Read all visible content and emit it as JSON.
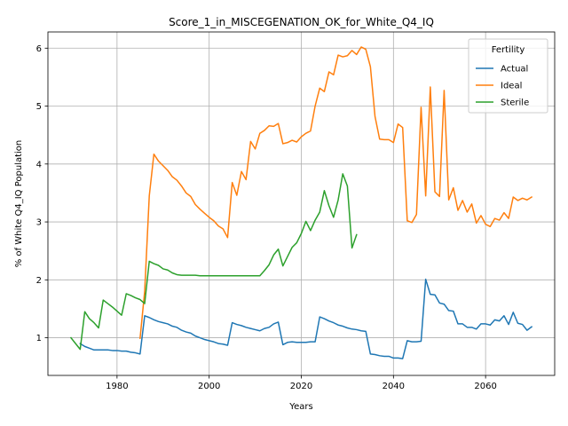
{
  "chart_data": {
    "type": "line",
    "title": "Score_1_in_MISCEGENATION_OK_for_White_Q4_IQ",
    "xlabel": "Years",
    "ylabel": "% of White Q4_IQ Population",
    "xlim": [
      1965,
      2075
    ],
    "ylim": [
      0.35,
      6.28
    ],
    "xticks": [
      1980,
      2000,
      2020,
      2040,
      2060
    ],
    "yticks": [
      1,
      2,
      3,
      4,
      5,
      6
    ],
    "grid": true,
    "legend": {
      "title": "Fertility",
      "placement": "top-right"
    },
    "series": [
      {
        "name": "Actual",
        "color": "#1f77b4",
        "points": [
          [
            1972,
            0.9
          ],
          [
            1973,
            0.85
          ],
          [
            1974,
            0.82
          ],
          [
            1975,
            0.79
          ],
          [
            1976,
            0.79
          ],
          [
            1977,
            0.79
          ],
          [
            1978,
            0.79
          ],
          [
            1979,
            0.78
          ],
          [
            1980,
            0.78
          ],
          [
            1981,
            0.77
          ],
          [
            1982,
            0.77
          ],
          [
            1983,
            0.75
          ],
          [
            1984,
            0.74
          ],
          [
            1985,
            0.72
          ],
          [
            1986,
            1.38
          ],
          [
            1987,
            1.35
          ],
          [
            1988,
            1.31
          ],
          [
            1989,
            1.28
          ],
          [
            1990,
            1.26
          ],
          [
            1991,
            1.24
          ],
          [
            1992,
            1.2
          ],
          [
            1993,
            1.18
          ],
          [
            1994,
            1.13
          ],
          [
            1995,
            1.1
          ],
          [
            1996,
            1.08
          ],
          [
            1997,
            1.03
          ],
          [
            1998,
            1.0
          ],
          [
            1999,
            0.97
          ],
          [
            2000,
            0.95
          ],
          [
            2001,
            0.93
          ],
          [
            2002,
            0.9
          ],
          [
            2003,
            0.89
          ],
          [
            2004,
            0.87
          ],
          [
            2005,
            1.26
          ],
          [
            2006,
            1.23
          ],
          [
            2007,
            1.21
          ],
          [
            2008,
            1.18
          ],
          [
            2009,
            1.16
          ],
          [
            2010,
            1.14
          ],
          [
            2011,
            1.12
          ],
          [
            2012,
            1.16
          ],
          [
            2013,
            1.18
          ],
          [
            2014,
            1.24
          ],
          [
            2015,
            1.27
          ],
          [
            2016,
            0.88
          ],
          [
            2017,
            0.92
          ],
          [
            2018,
            0.93
          ],
          [
            2019,
            0.92
          ],
          [
            2020,
            0.92
          ],
          [
            2021,
            0.92
          ],
          [
            2022,
            0.93
          ],
          [
            2023,
            0.93
          ],
          [
            2024,
            1.36
          ],
          [
            2025,
            1.33
          ],
          [
            2026,
            1.29
          ],
          [
            2027,
            1.26
          ],
          [
            2028,
            1.22
          ],
          [
            2029,
            1.2
          ],
          [
            2030,
            1.17
          ],
          [
            2031,
            1.15
          ],
          [
            2032,
            1.14
          ],
          [
            2033,
            1.12
          ],
          [
            2034,
            1.11
          ],
          [
            2035,
            0.72
          ],
          [
            2036,
            0.71
          ],
          [
            2037,
            0.69
          ],
          [
            2038,
            0.68
          ],
          [
            2039,
            0.68
          ],
          [
            2040,
            0.65
          ],
          [
            2041,
            0.65
          ],
          [
            2042,
            0.64
          ],
          [
            2043,
            0.95
          ],
          [
            2044,
            0.93
          ],
          [
            2045,
            0.93
          ],
          [
            2046,
            0.94
          ],
          [
            2047,
            2.01
          ],
          [
            2048,
            1.75
          ],
          [
            2049,
            1.74
          ],
          [
            2050,
            1.6
          ],
          [
            2051,
            1.58
          ],
          [
            2052,
            1.47
          ],
          [
            2053,
            1.46
          ],
          [
            2054,
            1.24
          ],
          [
            2055,
            1.24
          ],
          [
            2056,
            1.18
          ],
          [
            2057,
            1.18
          ],
          [
            2058,
            1.15
          ],
          [
            2059,
            1.24
          ],
          [
            2060,
            1.24
          ],
          [
            2061,
            1.22
          ],
          [
            2062,
            1.31
          ],
          [
            2063,
            1.29
          ],
          [
            2064,
            1.38
          ],
          [
            2065,
            1.23
          ],
          [
            2066,
            1.44
          ],
          [
            2067,
            1.25
          ],
          [
            2068,
            1.23
          ],
          [
            2069,
            1.13
          ],
          [
            2070,
            1.19
          ]
        ]
      },
      {
        "name": "Ideal",
        "color": "#ff7f0e",
        "points": [
          [
            1985,
            0.99
          ],
          [
            1986,
            1.8
          ],
          [
            1987,
            3.45
          ],
          [
            1988,
            4.17
          ],
          [
            1989,
            4.05
          ],
          [
            1990,
            3.97
          ],
          [
            1991,
            3.89
          ],
          [
            1992,
            3.78
          ],
          [
            1993,
            3.72
          ],
          [
            1994,
            3.62
          ],
          [
            1995,
            3.5
          ],
          [
            1996,
            3.44
          ],
          [
            1997,
            3.3
          ],
          [
            1998,
            3.22
          ],
          [
            1999,
            3.15
          ],
          [
            2000,
            3.08
          ],
          [
            2001,
            3.02
          ],
          [
            2002,
            2.93
          ],
          [
            2003,
            2.88
          ],
          [
            2004,
            2.73
          ],
          [
            2005,
            3.68
          ],
          [
            2006,
            3.46
          ],
          [
            2007,
            3.87
          ],
          [
            2008,
            3.73
          ],
          [
            2009,
            4.39
          ],
          [
            2010,
            4.26
          ],
          [
            2011,
            4.53
          ],
          [
            2012,
            4.58
          ],
          [
            2013,
            4.66
          ],
          [
            2014,
            4.65
          ],
          [
            2015,
            4.7
          ],
          [
            2016,
            4.35
          ],
          [
            2017,
            4.37
          ],
          [
            2018,
            4.41
          ],
          [
            2019,
            4.38
          ],
          [
            2020,
            4.47
          ],
          [
            2021,
            4.53
          ],
          [
            2022,
            4.57
          ],
          [
            2023,
            5.0
          ],
          [
            2024,
            5.31
          ],
          [
            2025,
            5.25
          ],
          [
            2026,
            5.59
          ],
          [
            2027,
            5.54
          ],
          [
            2028,
            5.88
          ],
          [
            2029,
            5.85
          ],
          [
            2030,
            5.87
          ],
          [
            2031,
            5.96
          ],
          [
            2032,
            5.89
          ],
          [
            2033,
            6.02
          ],
          [
            2034,
            5.98
          ],
          [
            2035,
            5.68
          ],
          [
            2036,
            4.82
          ],
          [
            2037,
            4.43
          ],
          [
            2038,
            4.42
          ],
          [
            2039,
            4.42
          ],
          [
            2040,
            4.37
          ],
          [
            2041,
            4.69
          ],
          [
            2042,
            4.63
          ],
          [
            2043,
            3.02
          ],
          [
            2044,
            2.99
          ],
          [
            2045,
            3.13
          ],
          [
            2046,
            4.98
          ],
          [
            2047,
            3.45
          ],
          [
            2048,
            5.33
          ],
          [
            2049,
            3.52
          ],
          [
            2050,
            3.44
          ],
          [
            2051,
            5.27
          ],
          [
            2052,
            3.38
          ],
          [
            2053,
            3.59
          ],
          [
            2054,
            3.2
          ],
          [
            2055,
            3.37
          ],
          [
            2056,
            3.17
          ],
          [
            2057,
            3.31
          ],
          [
            2058,
            2.98
          ],
          [
            2059,
            3.11
          ],
          [
            2060,
            2.96
          ],
          [
            2061,
            2.92
          ],
          [
            2062,
            3.06
          ],
          [
            2063,
            3.03
          ],
          [
            2064,
            3.16
          ],
          [
            2065,
            3.06
          ],
          [
            2066,
            3.43
          ],
          [
            2067,
            3.37
          ],
          [
            2068,
            3.41
          ],
          [
            2069,
            3.38
          ],
          [
            2070,
            3.43
          ]
        ]
      },
      {
        "name": "Sterile",
        "color": "#2ca02c",
        "points": [
          [
            1970,
            1.0
          ],
          [
            1971,
            0.9
          ],
          [
            1972,
            0.8
          ],
          [
            1973,
            1.45
          ],
          [
            1974,
            1.33
          ],
          [
            1975,
            1.26
          ],
          [
            1976,
            1.17
          ],
          [
            1977,
            1.65
          ],
          [
            1978,
            1.59
          ],
          [
            1979,
            1.53
          ],
          [
            1980,
            1.46
          ],
          [
            1981,
            1.39
          ],
          [
            1982,
            1.76
          ],
          [
            1983,
            1.73
          ],
          [
            1984,
            1.69
          ],
          [
            1985,
            1.66
          ],
          [
            1986,
            1.59
          ],
          [
            1987,
            2.32
          ],
          [
            1988,
            2.28
          ],
          [
            1989,
            2.25
          ],
          [
            1990,
            2.19
          ],
          [
            1991,
            2.17
          ],
          [
            1992,
            2.12
          ],
          [
            1993,
            2.09
          ],
          [
            1994,
            2.08
          ],
          [
            1995,
            2.08
          ],
          [
            1996,
            2.08
          ],
          [
            1997,
            2.08
          ],
          [
            1998,
            2.07
          ],
          [
            1999,
            2.07
          ],
          [
            2000,
            2.07
          ],
          [
            2001,
            2.07
          ],
          [
            2002,
            2.07
          ],
          [
            2003,
            2.07
          ],
          [
            2004,
            2.07
          ],
          [
            2005,
            2.07
          ],
          [
            2006,
            2.07
          ],
          [
            2007,
            2.07
          ],
          [
            2008,
            2.07
          ],
          [
            2009,
            2.07
          ],
          [
            2010,
            2.07
          ],
          [
            2011,
            2.07
          ],
          [
            2012,
            2.16
          ],
          [
            2013,
            2.26
          ],
          [
            2014,
            2.43
          ],
          [
            2015,
            2.53
          ],
          [
            2016,
            2.24
          ],
          [
            2017,
            2.4
          ],
          [
            2018,
            2.56
          ],
          [
            2019,
            2.64
          ],
          [
            2020,
            2.8
          ],
          [
            2021,
            3.01
          ],
          [
            2022,
            2.85
          ],
          [
            2023,
            3.03
          ],
          [
            2024,
            3.17
          ],
          [
            2025,
            3.54
          ],
          [
            2026,
            3.28
          ],
          [
            2027,
            3.08
          ],
          [
            2028,
            3.38
          ],
          [
            2029,
            3.83
          ],
          [
            2030,
            3.62
          ],
          [
            2031,
            2.55
          ],
          [
            2032,
            2.78
          ]
        ]
      }
    ]
  }
}
